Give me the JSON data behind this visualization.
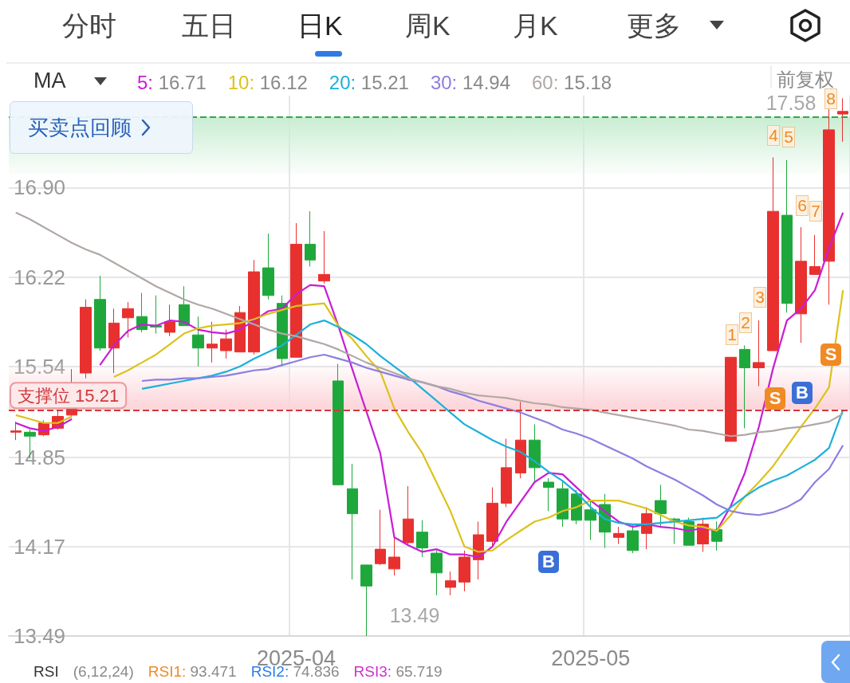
{
  "chart_data": {
    "type": "candlestick",
    "legend_title": "MA",
    "legend": "top left",
    "grid": true,
    "marker": "none",
    "categories": [
      null,
      null,
      null,
      null,
      null,
      null,
      null,
      null,
      null,
      null,
      null,
      null,
      null,
      null,
      null,
      null,
      null,
      null,
      null,
      null,
      "2025-04",
      null,
      null,
      null,
      null,
      null,
      null,
      null,
      null,
      null,
      null,
      null,
      null,
      null,
      null,
      null,
      null,
      null,
      null,
      null,
      null,
      "2025-05",
      null,
      null,
      null,
      null,
      null,
      null,
      null,
      null,
      null,
      null,
      null,
      null,
      null,
      null,
      null,
      null,
      null,
      null
    ],
    "ohlc": [
      [
        15.04,
        15.12,
        14.98,
        15.05
      ],
      [
        15.04,
        15.06,
        14.84,
        15.01
      ],
      [
        15.02,
        15.13,
        15.01,
        15.11
      ],
      [
        15.07,
        15.2,
        15.06,
        15.16
      ],
      [
        15.17,
        15.52,
        15.15,
        15.22
      ],
      [
        15.49,
        16.05,
        15.45,
        15.99
      ],
      [
        16.05,
        16.23,
        15.66,
        15.68
      ],
      [
        15.68,
        15.98,
        15.49,
        15.87
      ],
      [
        15.91,
        16.03,
        15.76,
        15.98
      ],
      [
        15.92,
        16.1,
        15.8,
        15.82
      ],
      [
        15.85,
        16.08,
        15.79,
        15.84
      ],
      [
        15.8,
        16.01,
        15.77,
        15.88
      ],
      [
        16.01,
        16.15,
        15.85,
        15.85
      ],
      [
        15.78,
        15.92,
        15.54,
        15.68
      ],
      [
        15.68,
        15.88,
        15.57,
        15.71
      ],
      [
        15.66,
        15.82,
        15.6,
        15.75
      ],
      [
        15.65,
        16.0,
        15.65,
        15.95
      ],
      [
        15.65,
        16.35,
        15.63,
        16.26
      ],
      [
        16.29,
        16.55,
        16.05,
        16.08
      ],
      [
        16.02,
        16.08,
        15.54,
        15.6
      ],
      [
        15.61,
        16.63,
        15.61,
        16.47
      ],
      [
        16.47,
        16.72,
        16.3,
        16.35
      ],
      [
        16.19,
        16.57,
        16.17,
        16.24
      ],
      [
        15.43,
        15.56,
        14.64,
        14.64
      ],
      [
        14.61,
        14.8,
        13.92,
        14.42
      ],
      [
        14.03,
        14.03,
        13.49,
        13.87
      ],
      [
        14.04,
        14.45,
        14.03,
        14.15
      ],
      [
        14.0,
        14.24,
        13.95,
        14.09
      ],
      [
        14.2,
        14.63,
        14.18,
        14.38
      ],
      [
        14.28,
        14.37,
        14.09,
        14.16
      ],
      [
        14.12,
        14.14,
        13.8,
        13.97
      ],
      [
        13.86,
        13.98,
        13.8,
        13.91
      ],
      [
        13.9,
        14.14,
        13.83,
        14.09
      ],
      [
        14.07,
        14.36,
        13.92,
        14.26
      ],
      [
        14.21,
        14.62,
        14.18,
        14.5
      ],
      [
        14.5,
        14.99,
        14.47,
        14.77
      ],
      [
        14.73,
        15.27,
        14.69,
        14.98
      ],
      [
        14.98,
        15.1,
        14.66,
        14.77
      ],
      [
        14.66,
        14.69,
        14.44,
        14.62
      ],
      [
        14.61,
        14.67,
        14.32,
        14.38
      ],
      [
        14.57,
        14.6,
        14.34,
        14.37
      ],
      [
        14.45,
        14.52,
        14.22,
        14.37
      ],
      [
        14.49,
        14.57,
        14.16,
        14.28
      ],
      [
        14.24,
        14.32,
        14.19,
        14.27
      ],
      [
        14.29,
        14.34,
        14.12,
        14.14
      ],
      [
        14.27,
        14.47,
        14.15,
        14.42
      ],
      [
        14.52,
        14.64,
        14.32,
        14.42
      ],
      [
        14.38,
        14.39,
        14.19,
        14.37
      ],
      [
        14.36,
        14.39,
        14.18,
        14.18
      ],
      [
        14.19,
        14.39,
        14.13,
        14.34
      ],
      [
        14.3,
        14.36,
        14.14,
        14.21
      ],
      [
        14.97,
        15.61,
        14.97,
        15.61
      ],
      [
        15.67,
        15.7,
        15.07,
        15.53
      ],
      [
        15.53,
        15.89,
        15.39,
        15.57
      ],
      [
        15.66,
        17.13,
        15.66,
        16.72
      ],
      [
        16.69,
        17.11,
        15.95,
        16.02
      ],
      [
        15.94,
        16.6,
        15.72,
        16.34
      ],
      [
        16.24,
        16.54,
        16.24,
        16.3
      ],
      [
        16.34,
        17.51,
        16.01,
        17.34
      ],
      [
        17.46,
        17.58,
        17.25,
        17.48
      ]
    ],
    "series": [
      {
        "name": "5: 16.71",
        "type": "line",
        "color": "#c81ed6",
        "values": [
          15.11,
          15.07,
          15.05,
          15.08,
          15.14,
          null,
          15.55,
          15.7,
          15.81,
          15.86,
          15.85,
          15.89,
          15.88,
          15.82,
          15.8,
          15.79,
          15.82,
          15.89,
          15.96,
          15.98,
          16.09,
          16.16,
          16.15,
          15.85,
          15.52,
          15.2,
          14.88,
          14.24,
          14.18,
          14.13,
          14.15,
          14.11,
          14.11,
          14.09,
          14.17,
          14.36,
          14.51,
          14.66,
          14.73,
          14.72,
          14.62,
          14.52,
          14.44,
          14.36,
          14.32,
          14.34,
          14.32,
          14.31,
          14.29,
          14.31,
          14.29,
          14.48,
          14.73,
          15.08,
          15.52,
          15.89,
          15.98,
          16.12,
          16.44,
          16.71
        ]
      },
      {
        "name": "10: 16.12",
        "type": "line",
        "color": "#dcc21c",
        "values": [
          15.17,
          15.14,
          15.11,
          15.11,
          15.16,
          null,
          null,
          15.46,
          15.51,
          15.57,
          15.63,
          15.71,
          15.79,
          15.83,
          15.85,
          15.86,
          15.87,
          15.9,
          15.94,
          15.97,
          16.0,
          16.01,
          16.02,
          15.85,
          15.75,
          15.62,
          15.5,
          15.22,
          15.04,
          14.88,
          14.66,
          14.44,
          14.17,
          14.13,
          14.14,
          14.22,
          14.29,
          14.36,
          14.39,
          14.44,
          14.47,
          14.52,
          14.52,
          14.52,
          14.49,
          14.46,
          14.41,
          14.36,
          14.33,
          14.32,
          14.29,
          14.41,
          14.55,
          14.66,
          14.78,
          14.93,
          15.08,
          15.22,
          15.38,
          16.12
        ]
      },
      {
        "name": "20: 15.21",
        "type": "line",
        "color": "#1cb0dc",
        "values": [
          null,
          null,
          null,
          null,
          null,
          null,
          null,
          null,
          null,
          15.37,
          15.39,
          15.41,
          15.43,
          15.45,
          15.47,
          15.5,
          15.54,
          15.6,
          15.65,
          15.7,
          15.78,
          15.86,
          15.89,
          15.84,
          15.78,
          15.71,
          15.62,
          15.54,
          15.46,
          15.37,
          15.28,
          15.19,
          15.1,
          15.04,
          14.98,
          14.93,
          14.89,
          14.82,
          14.74,
          14.67,
          14.58,
          14.47,
          14.38,
          14.35,
          14.34,
          14.34,
          14.35,
          14.36,
          14.37,
          14.38,
          14.39,
          14.47,
          14.55,
          14.62,
          14.67,
          14.71,
          14.77,
          14.83,
          14.92,
          15.21
        ]
      },
      {
        "name": "30: 14.94",
        "type": "line",
        "color": "#8b7fe0",
        "values": [
          null,
          null,
          null,
          null,
          null,
          null,
          null,
          null,
          null,
          15.43,
          15.44,
          15.44,
          15.45,
          15.45,
          15.46,
          15.47,
          15.49,
          15.51,
          15.52,
          15.55,
          15.58,
          15.61,
          15.63,
          15.6,
          15.57,
          15.53,
          15.5,
          15.47,
          15.44,
          15.42,
          15.39,
          15.35,
          15.32,
          15.28,
          15.25,
          15.22,
          15.19,
          15.15,
          15.11,
          15.06,
          15.03,
          14.99,
          14.94,
          14.89,
          14.84,
          14.78,
          14.73,
          14.68,
          14.62,
          14.56,
          14.49,
          14.44,
          14.42,
          14.41,
          14.43,
          14.47,
          14.53,
          14.66,
          14.76,
          14.94
        ]
      },
      {
        "name": "60: 15.18",
        "type": "line",
        "color": "#b0a8a4",
        "values": [
          16.71,
          16.66,
          16.6,
          16.54,
          16.48,
          16.43,
          16.39,
          16.33,
          16.27,
          16.21,
          16.15,
          16.1,
          16.05,
          16.01,
          15.98,
          15.94,
          15.9,
          15.86,
          15.82,
          15.79,
          15.77,
          15.74,
          15.71,
          15.67,
          15.62,
          15.57,
          15.53,
          15.49,
          15.45,
          15.42,
          15.39,
          15.37,
          15.34,
          15.32,
          15.31,
          15.3,
          15.28,
          15.26,
          15.25,
          15.23,
          15.22,
          15.21,
          15.19,
          15.17,
          15.15,
          15.13,
          15.11,
          15.09,
          15.06,
          15.05,
          15.03,
          15.01,
          15.02,
          15.04,
          15.05,
          15.07,
          15.08,
          15.1,
          15.12,
          15.18
        ]
      }
    ],
    "ylim": [
      13.49,
      17.6
    ],
    "yticks": [
      13.49,
      14.17,
      14.85,
      15.54,
      16.22,
      {
        "value": 16.9,
        "label": "16.90"
      }
    ],
    "ref_lines": [
      {
        "axis": "y",
        "value": 15.21,
        "label": "支撑位 15.21",
        "color": "#d0393c",
        "line_style": "dashed"
      },
      {
        "axis": "y",
        "value": 17.44,
        "color": "#2fa84f",
        "line_style": "dashed"
      }
    ],
    "bands": [
      {
        "axis": "y",
        "from": 15.21,
        "to": 15.55,
        "color": "#fcd3d8"
      },
      {
        "axis": "y",
        "from": 17.0,
        "to": 17.44,
        "color": "#c9edd2"
      }
    ],
    "annotations": [
      "分时",
      "五日",
      "日K",
      "周K",
      "月K",
      "更多",
      "前复权",
      "买卖点回顾",
      "RSI",
      "(6,12,24)",
      "RSI1: 93.471",
      "RSI2: 74.836",
      "RSI3: 65.719",
      "17.58",
      "13.49",
      "1",
      "2",
      "3",
      "4",
      "5",
      "6",
      "7",
      "8",
      "B",
      "S",
      "B",
      "S"
    ]
  }
}
